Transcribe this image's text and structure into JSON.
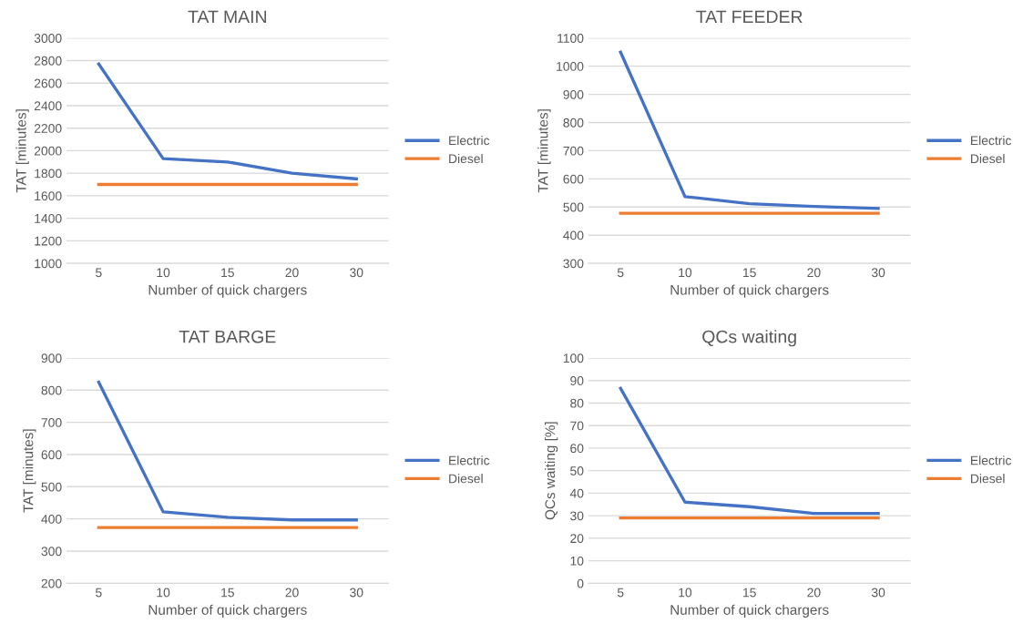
{
  "chart_data": [
    {
      "type": "line",
      "title": "TAT MAIN",
      "xlabel": "Number of quick chargers",
      "ylabel": "TAT [minutes]",
      "categories": [
        "5",
        "10",
        "15",
        "20",
        "30"
      ],
      "ylim": [
        1000,
        3000
      ],
      "yticks": [
        1000,
        1200,
        1400,
        1600,
        1800,
        2000,
        2200,
        2400,
        2600,
        2800,
        3000
      ],
      "grid": "y",
      "legend": "right",
      "marker": "none",
      "line_style": "solid",
      "series": [
        {
          "name": "Electric",
          "color": "#4472c4",
          "values": [
            2770,
            1930,
            1900,
            1800,
            1750
          ]
        },
        {
          "name": "Diesel",
          "color": "#ed7d31",
          "values": [
            1700,
            1700,
            1700,
            1700,
            1700
          ]
        }
      ]
    },
    {
      "type": "line",
      "title": "TAT FEEDER",
      "xlabel": "Number of quick chargers",
      "ylabel": "TAT [minutes]",
      "categories": [
        "5",
        "10",
        "15",
        "20",
        "30"
      ],
      "ylim": [
        300,
        1100
      ],
      "yticks": [
        300,
        400,
        500,
        600,
        700,
        800,
        900,
        1000,
        1100
      ],
      "grid": "y",
      "legend": "right",
      "marker": "none",
      "line_style": "solid",
      "series": [
        {
          "name": "Electric",
          "color": "#4472c4",
          "values": [
            1050,
            537,
            512,
            502,
            495
          ]
        },
        {
          "name": "Diesel",
          "color": "#ed7d31",
          "values": [
            478,
            478,
            478,
            478,
            478
          ]
        }
      ]
    },
    {
      "type": "line",
      "title": "TAT BARGE",
      "xlabel": "Number of quick chargers",
      "ylabel": "TAT [minutes]",
      "categories": [
        "5",
        "10",
        "15",
        "20",
        "30"
      ],
      "ylim": [
        200,
        900
      ],
      "yticks": [
        200,
        300,
        400,
        500,
        600,
        700,
        800,
        900
      ],
      "grid": "y",
      "legend": "right",
      "marker": "none",
      "line_style": "solid",
      "series": [
        {
          "name": "Electric",
          "color": "#4472c4",
          "values": [
            825,
            422,
            405,
            397,
            397
          ]
        },
        {
          "name": "Diesel",
          "color": "#ed7d31",
          "values": [
            373,
            373,
            373,
            373,
            373
          ]
        }
      ]
    },
    {
      "type": "line",
      "title": "QCs waiting",
      "xlabel": "Number of quick chargers",
      "ylabel": "QCs waiting [%]",
      "categories": [
        "5",
        "10",
        "15",
        "20",
        "30"
      ],
      "ylim": [
        0,
        100
      ],
      "yticks": [
        0,
        10,
        20,
        30,
        40,
        50,
        60,
        70,
        80,
        90,
        100
      ],
      "grid": "y",
      "legend": "right",
      "marker": "none",
      "line_style": "solid",
      "series": [
        {
          "name": "Electric",
          "color": "#4472c4",
          "values": [
            86.5,
            36,
            34,
            31,
            31
          ]
        },
        {
          "name": "Diesel",
          "color": "#ed7d31",
          "values": [
            29,
            29,
            29,
            29,
            29
          ]
        }
      ]
    }
  ]
}
